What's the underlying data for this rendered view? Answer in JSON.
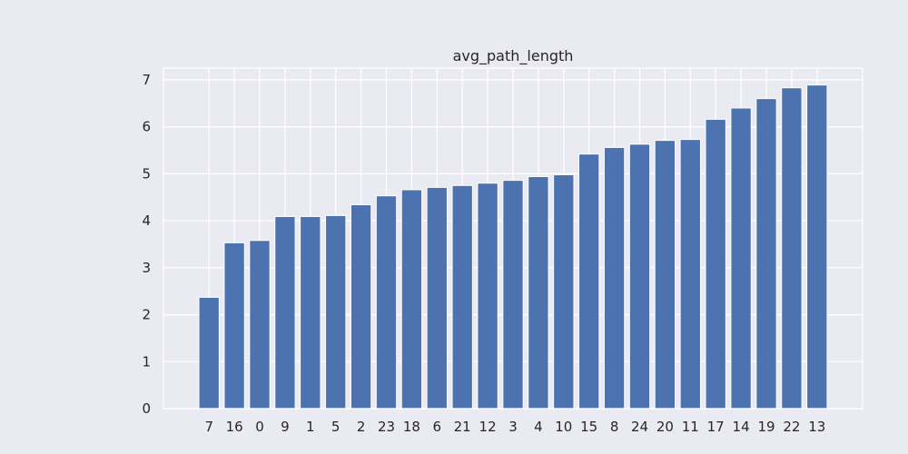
{
  "chart_data": {
    "type": "bar",
    "title": "avg_path_length",
    "xlabel": "",
    "ylabel": "",
    "categories": [
      "7",
      "16",
      "0",
      "9",
      "1",
      "5",
      "2",
      "23",
      "18",
      "6",
      "21",
      "12",
      "3",
      "4",
      "10",
      "15",
      "8",
      "24",
      "20",
      "11",
      "17",
      "14",
      "19",
      "22",
      "13"
    ],
    "values": [
      2.37,
      3.53,
      3.58,
      4.09,
      4.09,
      4.11,
      4.34,
      4.53,
      4.66,
      4.71,
      4.75,
      4.8,
      4.86,
      4.94,
      4.98,
      5.42,
      5.56,
      5.63,
      5.71,
      5.73,
      6.16,
      6.4,
      6.6,
      6.83,
      6.89
    ],
    "ylim": [
      0,
      7.25
    ],
    "yticks": [
      0,
      1,
      2,
      3,
      4,
      5,
      6,
      7
    ],
    "grid": true,
    "bar_color": "#4C72B0",
    "background_color": "#EAEAF2",
    "grid_color": "#FFFFFF"
  }
}
